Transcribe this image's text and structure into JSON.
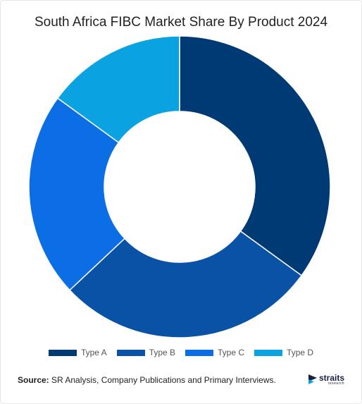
{
  "chart_data": {
    "type": "pie",
    "title": "South Africa FIBC Market Share By Product 2024",
    "categories": [
      "Type A",
      "Type B",
      "Type C",
      "Type D"
    ],
    "values": [
      35,
      28,
      22,
      15
    ],
    "colors": [
      "#003a74",
      "#0a52a5",
      "#0b6ee5",
      "#0aa2e0"
    ],
    "donut": true,
    "legend_position": "bottom"
  },
  "footer": {
    "source_label": "Source:",
    "source_text": " SR Analysis, Company Publications and Primary Interviews."
  },
  "logo": {
    "name": "straits",
    "sub": "research"
  }
}
